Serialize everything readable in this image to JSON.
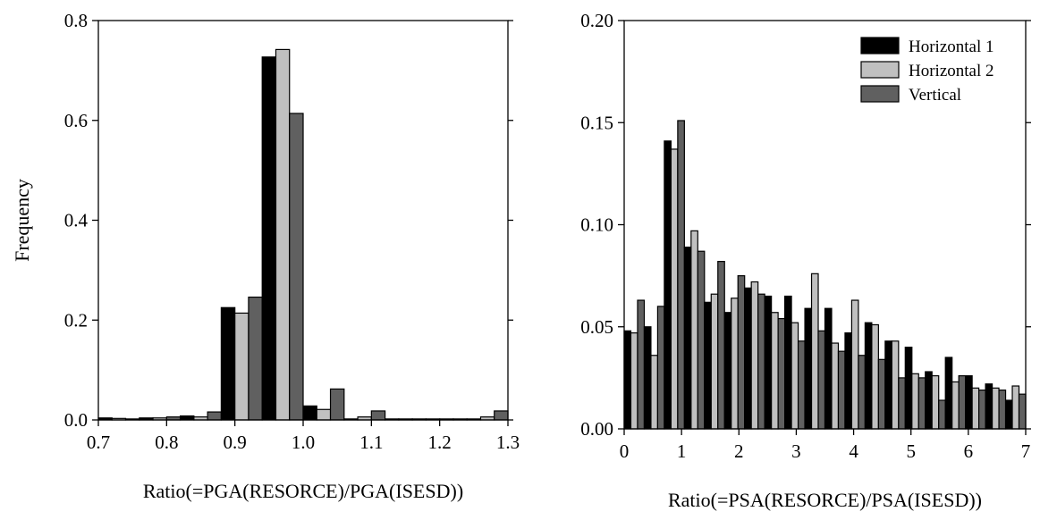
{
  "colors": {
    "Horizontal 1": "#000000",
    "Horizontal 2": "#c0c0c0",
    "Vertical": "#606060"
  },
  "chart_data": [
    {
      "type": "bar",
      "xlabel": "Ratio(=PGA(RESORCE)/PGA(ISESD))",
      "ylabel": "Frequency",
      "xlim": [
        0.7,
        1.3
      ],
      "ylim": [
        0,
        0.8
      ],
      "x_ticks": [
        "0.7",
        "0.8",
        "0.9",
        "1.0",
        "1.1",
        "1.2",
        "1.3"
      ],
      "y_ticks": [
        "0.0",
        "0.2",
        "0.4",
        "0.6",
        "0.8"
      ],
      "bin_width": 0.06,
      "bin_starts": [
        0.7,
        0.76,
        0.82,
        0.88,
        0.94,
        1.0,
        1.06,
        1.12,
        1.18,
        1.24
      ],
      "series": [
        {
          "name": "Horizontal 1",
          "values": [
            0.004,
            0.004,
            0.008,
            0.225,
            0.727,
            0.028,
            0.002,
            0.002,
            0.002,
            0.002
          ]
        },
        {
          "name": "Horizontal 2",
          "values": [
            0.003,
            0.004,
            0.006,
            0.214,
            0.742,
            0.021,
            0.006,
            0.002,
            0.002,
            0.006
          ]
        },
        {
          "name": "Vertical",
          "values": [
            0.002,
            0.006,
            0.016,
            0.246,
            0.614,
            0.062,
            0.018,
            0.002,
            0.002,
            0.018
          ]
        }
      ],
      "grid": false,
      "legend": "none"
    },
    {
      "type": "bar",
      "xlabel": "Ratio(=PSA(RESORCE)/PSA(ISESD))",
      "ylabel": "",
      "xlim": [
        0,
        7
      ],
      "ylim": [
        0,
        0.2
      ],
      "x_ticks": [
        "0",
        "1",
        "2",
        "3",
        "4",
        "5",
        "6",
        "7"
      ],
      "y_ticks": [
        "0.00",
        "0.05",
        "0.10",
        "0.15",
        "0.20"
      ],
      "bin_width": 0.35,
      "bin_starts": [
        0,
        0.35,
        0.7,
        1.05,
        1.4,
        1.75,
        2.1,
        2.45,
        2.8,
        3.15,
        3.5,
        3.85,
        4.2,
        4.55,
        4.9,
        5.25,
        5.6,
        5.95,
        6.3,
        6.65
      ],
      "series": [
        {
          "name": "Horizontal 1",
          "values": [
            0.048,
            0.05,
            0.141,
            0.089,
            0.062,
            0.057,
            0.069,
            0.065,
            0.065,
            0.059,
            0.059,
            0.047,
            0.052,
            0.043,
            0.04,
            0.028,
            0.035,
            0.026,
            0.022,
            0.014
          ]
        },
        {
          "name": "Horizontal 2",
          "values": [
            0.047,
            0.036,
            0.137,
            0.097,
            0.066,
            0.064,
            0.072,
            0.057,
            0.052,
            0.076,
            0.042,
            0.063,
            0.051,
            0.043,
            0.027,
            0.026,
            0.023,
            0.02,
            0.02,
            0.021
          ]
        },
        {
          "name": "Vertical",
          "values": [
            0.063,
            0.06,
            0.151,
            0.087,
            0.082,
            0.075,
            0.066,
            0.054,
            0.043,
            0.048,
            0.038,
            0.036,
            0.034,
            0.025,
            0.025,
            0.014,
            0.026,
            0.019,
            0.019,
            0.017
          ]
        }
      ],
      "grid": false,
      "legend": "top-right"
    }
  ]
}
